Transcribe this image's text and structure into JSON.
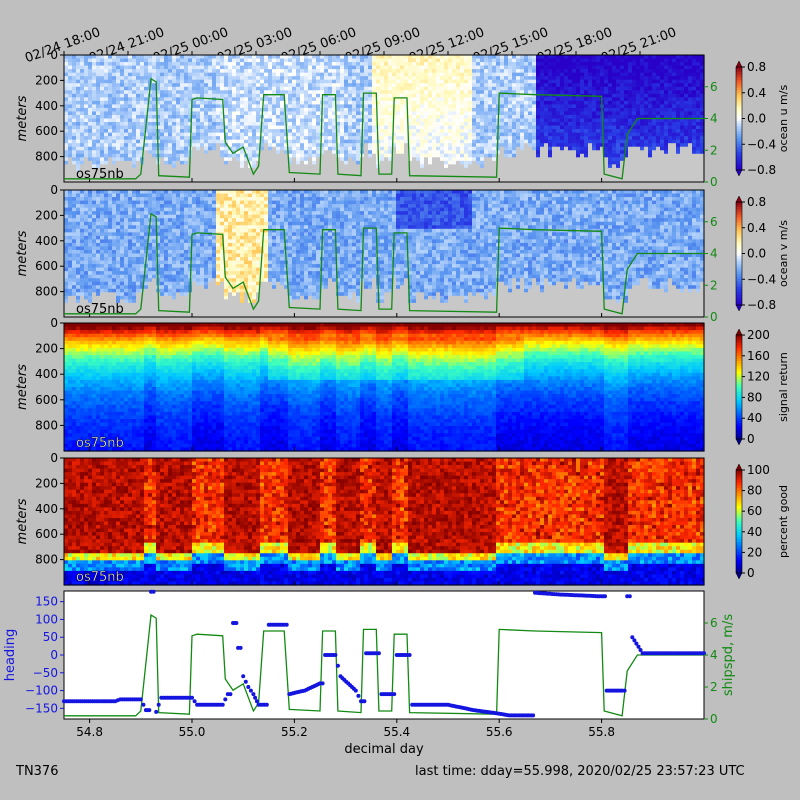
{
  "chart_data": {
    "type": "line",
    "top_time_ticks": [
      {
        "day": 54.75,
        "label": "02/24 18:00"
      },
      {
        "day": 54.875,
        "label": "02/24 21:00"
      },
      {
        "day": 55.0,
        "label": "02/25 00:00"
      },
      {
        "day": 55.125,
        "label": "02/25 03:00"
      },
      {
        "day": 55.25,
        "label": "02/25 06:00"
      },
      {
        "day": 55.375,
        "label": "02/25 09:00"
      },
      {
        "day": 55.5,
        "label": "02/25 12:00"
      },
      {
        "day": 55.625,
        "label": "02/25 15:00"
      },
      {
        "day": 55.75,
        "label": "02/25 18:00"
      },
      {
        "day": 55.875,
        "label": "02/25 21:00"
      }
    ],
    "xlim": [
      54.75,
      56.0
    ],
    "x_ticks": [
      "54.8",
      "55.0",
      "55.2",
      "55.4",
      "55.6",
      "55.8"
    ],
    "xlabel": "decimal day",
    "depth_ticks": [
      "0",
      "200",
      "400",
      "600",
      "800"
    ],
    "depth_ylim": [
      1000,
      0
    ],
    "depth_label": "meters",
    "panel_tag": "os75nb",
    "shipspd_ticks": [
      "0",
      "2",
      "4",
      "6"
    ],
    "panels": [
      {
        "kind": "u",
        "colorbar_label": "ocean u m/s",
        "cb_ticks": [
          "0.8",
          "0.4",
          "0.0",
          "−0.4",
          "−0.8"
        ],
        "clim": [
          -0.8,
          0.8
        ],
        "cmap": "RdYlBu_r"
      },
      {
        "kind": "v",
        "colorbar_label": "ocean v m/s",
        "cb_ticks": [
          "0.8",
          "0.4",
          "0.0",
          "−0.4",
          "−0.8"
        ],
        "clim": [
          -0.8,
          0.8
        ],
        "cmap": "RdYlBu_r"
      },
      {
        "kind": "amp",
        "colorbar_label": "signal return",
        "cb_ticks": [
          "200",
          "160",
          "120",
          "80",
          "40",
          "0"
        ],
        "clim": [
          0,
          200
        ],
        "cmap": "jet"
      },
      {
        "kind": "pg",
        "colorbar_label": "percent good",
        "cb_ticks": [
          "100",
          "80",
          "60",
          "40",
          "20",
          "0"
        ],
        "clim": [
          0,
          100
        ],
        "cmap": "jet"
      }
    ],
    "bottom_panel": {
      "left_label": "heading",
      "right_label": "shipspd, m/s",
      "heading_ticks": [
        "150",
        "100",
        "50",
        "0",
        "−50",
        "−100",
        "−150"
      ],
      "heading_ylim": [
        -180,
        180
      ],
      "shipspd_ylim": [
        0,
        8
      ]
    },
    "series": [
      {
        "name": "heading"
      },
      {
        "name": "shipspd, m/s"
      }
    ],
    "shipspd": [
      [
        54.75,
        0.2
      ],
      [
        54.89,
        0.2
      ],
      [
        54.9,
        0.5
      ],
      [
        54.92,
        6.5
      ],
      [
        54.93,
        6.3
      ],
      [
        54.935,
        0.4
      ],
      [
        54.995,
        0.3
      ],
      [
        55.0,
        5.2
      ],
      [
        55.01,
        5.3
      ],
      [
        55.06,
        5.2
      ],
      [
        55.065,
        2.5
      ],
      [
        55.08,
        1.8
      ],
      [
        55.1,
        2.2
      ],
      [
        55.12,
        0.5
      ],
      [
        55.13,
        1.0
      ],
      [
        55.14,
        5.5
      ],
      [
        55.18,
        5.5
      ],
      [
        55.19,
        0.6
      ],
      [
        55.25,
        0.5
      ],
      [
        55.255,
        5.5
      ],
      [
        55.28,
        5.5
      ],
      [
        55.285,
        0.5
      ],
      [
        55.33,
        0.4
      ],
      [
        55.335,
        5.6
      ],
      [
        55.36,
        5.6
      ],
      [
        55.365,
        0.5
      ],
      [
        55.39,
        0.5
      ],
      [
        55.395,
        5.3
      ],
      [
        55.42,
        5.3
      ],
      [
        55.425,
        0.4
      ],
      [
        55.595,
        0.3
      ],
      [
        55.6,
        5.6
      ],
      [
        55.67,
        5.5
      ],
      [
        55.8,
        5.4
      ],
      [
        55.805,
        0.5
      ],
      [
        55.84,
        0.2
      ],
      [
        55.85,
        3.0
      ],
      [
        55.87,
        4.0
      ],
      [
        55.94,
        4.0
      ],
      [
        56.0,
        4.0
      ]
    ],
    "heading": [
      [
        54.75,
        -130
      ],
      [
        54.85,
        -130
      ],
      [
        54.86,
        -125
      ],
      [
        54.9,
        -125
      ],
      [
        54.91,
        -155
      ],
      [
        54.92,
        178
      ],
      [
        54.93,
        -160
      ],
      [
        54.94,
        -120
      ],
      [
        55.0,
        -120
      ],
      [
        55.01,
        -140
      ],
      [
        55.06,
        -140
      ],
      [
        55.07,
        -110
      ],
      [
        55.08,
        90
      ],
      [
        55.09,
        20
      ],
      [
        55.1,
        -60
      ],
      [
        55.11,
        -90
      ],
      [
        55.12,
        -110
      ],
      [
        55.13,
        -140
      ],
      [
        55.15,
        85
      ],
      [
        55.18,
        85
      ],
      [
        55.19,
        -110
      ],
      [
        55.22,
        -100
      ],
      [
        55.25,
        -80
      ],
      [
        55.26,
        0
      ],
      [
        55.28,
        0
      ],
      [
        55.29,
        -60
      ],
      [
        55.32,
        -100
      ],
      [
        55.33,
        -130
      ],
      [
        55.34,
        5
      ],
      [
        55.36,
        5
      ],
      [
        55.37,
        -110
      ],
      [
        55.39,
        -110
      ],
      [
        55.4,
        0
      ],
      [
        55.42,
        0
      ],
      [
        55.43,
        -140
      ],
      [
        55.5,
        -140
      ],
      [
        55.55,
        -155
      ],
      [
        55.6,
        -165
      ],
      [
        55.62,
        -170
      ],
      [
        55.67,
        175
      ],
      [
        55.72,
        170
      ],
      [
        55.8,
        165
      ],
      [
        55.81,
        -100
      ],
      [
        55.84,
        -100
      ],
      [
        55.85,
        165
      ],
      [
        55.86,
        50
      ],
      [
        55.88,
        5
      ],
      [
        56.0,
        5
      ]
    ]
  },
  "footer": {
    "cruise": "TN376",
    "last_time": "last time: dday=55.998,  2020/02/25 23:57:23 UTC"
  }
}
